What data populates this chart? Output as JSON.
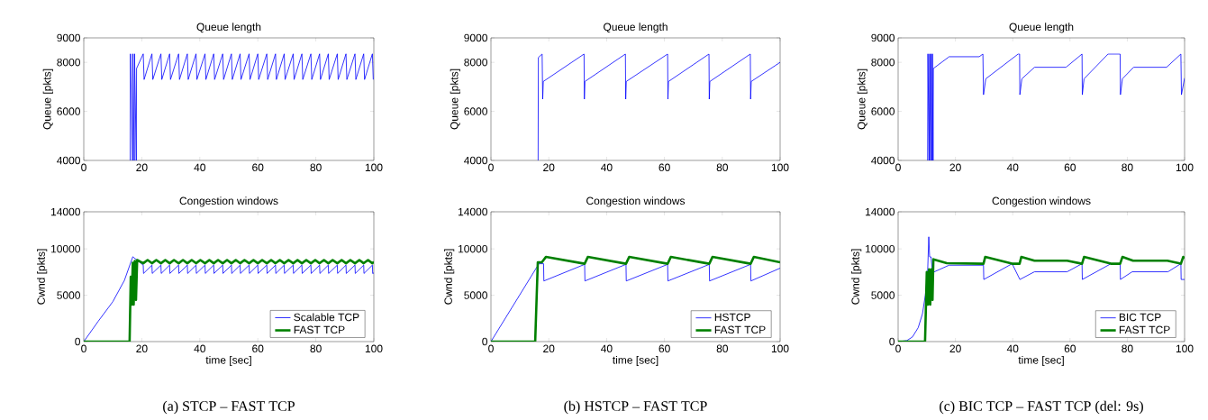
{
  "chart_data": [
    {
      "type": "line",
      "title": "Queue length",
      "ylabel": "Queue [pkts]",
      "xlim": [
        0,
        100
      ],
      "ylim": [
        4000,
        9000
      ],
      "xticks": [
        0,
        20,
        40,
        60,
        80,
        100
      ],
      "yticks": [
        4000,
        6000,
        8000,
        9000
      ],
      "series": [
        {
          "color": "#0000ff",
          "x": [
            16.0,
            16.1,
            16.8,
            16.9,
            17.4,
            17.5,
            18.1,
            18.2,
            20.5,
            20.8,
            23.5,
            23.8,
            26.6,
            26.9,
            29.6,
            29.9,
            32.7,
            33.0,
            35.7,
            36.0,
            38.7,
            39.0,
            41.8,
            42.1,
            44.8,
            45.1,
            47.9,
            48.2,
            50.9,
            51.2,
            53.9,
            54.2,
            57.0,
            57.3,
            60.0,
            60.3,
            63.1,
            63.4,
            66.1,
            66.4,
            69.1,
            69.4,
            72.2,
            72.5,
            75.2,
            75.5,
            78.3,
            78.6,
            81.3,
            81.6,
            84.3,
            84.6,
            87.4,
            87.7,
            90.4,
            90.7,
            93.5,
            93.8,
            96.5,
            96.8,
            99.5,
            99.8
          ],
          "values": [
            4000,
            8350,
            4000,
            8350,
            4000,
            8350,
            4000,
            7750,
            8350,
            7300,
            8350,
            7300,
            8350,
            7300,
            8350,
            7300,
            8350,
            7300,
            8350,
            7300,
            8350,
            7300,
            8350,
            7300,
            8350,
            7300,
            8350,
            7300,
            8350,
            7300,
            8350,
            7300,
            8350,
            7300,
            8350,
            7300,
            8350,
            7300,
            8350,
            7300,
            8350,
            7300,
            8350,
            7300,
            8350,
            7300,
            8350,
            7300,
            8350,
            7300,
            8350,
            7300,
            8350,
            7300,
            8350,
            7300,
            8350,
            7300,
            8350,
            7300,
            8350,
            7300
          ]
        }
      ]
    },
    {
      "type": "line",
      "title": "Queue length",
      "ylabel": "Queue [pkts]",
      "xlim": [
        0,
        100
      ],
      "ylim": [
        4000,
        9000
      ],
      "xticks": [
        0,
        20,
        40,
        60,
        80,
        100
      ],
      "yticks": [
        4000,
        6000,
        8000,
        9000
      ],
      "series": [
        {
          "color": "#0000ff",
          "x": [
            16.3,
            16.4,
            17.7,
            17.9,
            18.1,
            32.2,
            32.3,
            32.5,
            46.5,
            46.6,
            46.8,
            61.1,
            61.2,
            61.4,
            75.4,
            75.5,
            75.7,
            89.7,
            89.8,
            90.0,
            100
          ],
          "values": [
            4000,
            8200,
            8340,
            6500,
            7220,
            8340,
            6500,
            7220,
            8340,
            6500,
            7220,
            8340,
            6500,
            7220,
            8340,
            6500,
            7220,
            8340,
            6500,
            7220,
            8000
          ]
        }
      ]
    },
    {
      "type": "line",
      "title": "Queue length",
      "ylabel": "Queue [pkts]",
      "xlim": [
        0,
        100
      ],
      "ylim": [
        4000,
        9000
      ],
      "xticks": [
        0,
        20,
        40,
        60,
        80,
        100
      ],
      "yticks": [
        4000,
        6000,
        8000,
        9000
      ],
      "series": [
        {
          "color": "#0000ff",
          "x": [
            10.3,
            10.4,
            10.8,
            11.0,
            11.3,
            11.5,
            11.8,
            12.0,
            12.2,
            12.3,
            17.8,
            28.3,
            29.6,
            29.8,
            30.6,
            41.9,
            42.4,
            42.5,
            43.2,
            47.6,
            58.6,
            64.2,
            64.3,
            64.9,
            73.3,
            77.5,
            77.6,
            78.3,
            82.2,
            93.7,
            98.7,
            98.9,
            100
          ],
          "values": [
            4000,
            8350,
            4000,
            8350,
            4000,
            8350,
            4000,
            8350,
            4000,
            7750,
            8230,
            8230,
            8340,
            6680,
            7330,
            8340,
            8340,
            6680,
            7330,
            7800,
            7800,
            8340,
            6680,
            7330,
            8340,
            8340,
            6680,
            7330,
            7800,
            7800,
            8340,
            6680,
            7360
          ]
        }
      ]
    },
    {
      "type": "line",
      "title": "Congestion windows",
      "xlabel": "time [sec]",
      "ylabel": "Cwnd [pkts]",
      "xlim": [
        0,
        100
      ],
      "ylim": [
        0,
        14000
      ],
      "xticks": [
        0,
        20,
        40,
        60,
        80,
        100
      ],
      "yticks": [
        0,
        5000,
        10000,
        14000
      ],
      "legend": "bottom right",
      "annotations": [
        "(a) STCP – FAST TCP"
      ],
      "series": [
        {
          "name": "Scalable TCP",
          "color": "#0000ff",
          "x": [
            0,
            5,
            10,
            14,
            16.9,
            17.2,
            20.5,
            20.6,
            23.5,
            23.6,
            26.6,
            26.7,
            29.6,
            29.7,
            32.7,
            32.8,
            35.7,
            35.8,
            38.7,
            38.8,
            41.8,
            41.9,
            44.8,
            44.9,
            47.9,
            48.0,
            50.9,
            51.0,
            53.9,
            54.0,
            57.0,
            57.1,
            60.0,
            60.1,
            63.1,
            63.2,
            66.1,
            66.2,
            69.1,
            69.2,
            72.2,
            72.3,
            75.2,
            75.3,
            78.3,
            78.4,
            81.3,
            81.4,
            84.3,
            84.4,
            87.4,
            87.5,
            90.4,
            90.5,
            93.5,
            93.6,
            96.5,
            96.6,
            99.5,
            99.6,
            100
          ],
          "values": [
            0,
            2200,
            4300,
            6600,
            9150,
            null,
            8250,
            7350,
            8250,
            7350,
            8250,
            7350,
            8250,
            7350,
            8250,
            7350,
            8250,
            7350,
            8250,
            7350,
            8250,
            7350,
            8250,
            7350,
            8250,
            7350,
            8250,
            7350,
            8250,
            7350,
            8250,
            7350,
            8250,
            7350,
            8250,
            7350,
            8250,
            7350,
            8250,
            7350,
            8250,
            7350,
            8250,
            7350,
            8250,
            7350,
            8250,
            7350,
            8250,
            7350,
            8250,
            7350,
            8250,
            7350,
            8250,
            7350,
            8250,
            7350,
            8250,
            7350,
            7400
          ]
        },
        {
          "name": "FAST TCP",
          "color": "#008000",
          "x": [
            0,
            15.8,
            16.2,
            16.5,
            16.9,
            17.2,
            17.6,
            18.0,
            18.4,
            20.5,
            22.0,
            23.5,
            25.0,
            26.6,
            28.1,
            29.6,
            31.1,
            32.7,
            34.2,
            35.7,
            37.2,
            38.7,
            40.2,
            41.8,
            43.3,
            44.8,
            46.3,
            47.9,
            49.4,
            50.9,
            52.4,
            53.9,
            55.4,
            57.0,
            58.5,
            60.0,
            61.5,
            63.1,
            64.6,
            66.1,
            67.6,
            69.1,
            70.6,
            72.2,
            73.7,
            75.2,
            76.7,
            78.3,
            79.8,
            81.3,
            82.8,
            84.3,
            85.8,
            87.4,
            88.9,
            90.4,
            91.9,
            93.5,
            95.0,
            96.5,
            98.0,
            99.5,
            100
          ],
          "values": [
            0,
            0,
            7000,
            4000,
            8500,
            4000,
            8700,
            4500,
            8800,
            8450,
            8800,
            8450,
            8800,
            8450,
            8800,
            8450,
            8800,
            8450,
            8800,
            8450,
            8800,
            8450,
            8800,
            8450,
            8800,
            8450,
            8800,
            8450,
            8800,
            8450,
            8800,
            8450,
            8800,
            8450,
            8800,
            8450,
            8800,
            8450,
            8800,
            8450,
            8800,
            8450,
            8800,
            8450,
            8800,
            8450,
            8800,
            8450,
            8800,
            8450,
            8800,
            8450,
            8800,
            8450,
            8800,
            8450,
            8800,
            8450,
            8800,
            8450,
            8800,
            8450,
            8600
          ]
        }
      ]
    },
    {
      "type": "line",
      "title": "Congestion windows",
      "xlabel": "time [sec]",
      "ylabel": "Cwnd [pkts]",
      "xlim": [
        0,
        100
      ],
      "ylim": [
        0,
        14000
      ],
      "xticks": [
        0,
        20,
        40,
        60,
        80,
        100
      ],
      "yticks": [
        0,
        5000,
        10000,
        14000
      ],
      "legend": "bottom right",
      "annotations": [
        "(b) HSTCP – FAST TCP"
      ],
      "series": [
        {
          "name": "HSTCP",
          "color": "#0000ff",
          "x": [
            0,
            16.6,
            18.2,
            18.3,
            32.4,
            32.5,
            46.7,
            46.8,
            61.1,
            61.2,
            75.5,
            75.6,
            89.8,
            89.9,
            100
          ],
          "values": [
            0,
            8400,
            8400,
            6540,
            8330,
            6540,
            8330,
            6540,
            8330,
            6540,
            8330,
            6540,
            8330,
            6540,
            7920
          ]
        },
        {
          "name": "FAST TCP",
          "color": "#008000",
          "x": [
            0,
            15.3,
            16.2,
            17.6,
            19.0,
            32.4,
            33.5,
            46.7,
            47.8,
            61.1,
            62.2,
            75.5,
            76.6,
            89.8,
            90.9,
            100
          ],
          "values": [
            0,
            0,
            8560,
            8560,
            9130,
            8400,
            9130,
            8400,
            9130,
            8400,
            9130,
            8400,
            9130,
            8400,
            9130,
            8560
          ]
        }
      ]
    },
    {
      "type": "line",
      "title": "Congestion windows",
      "xlabel": "time [sec]",
      "ylabel": "Cwnd [pkts]",
      "xlim": [
        0,
        100
      ],
      "ylim": [
        0,
        14000
      ],
      "xticks": [
        0,
        20,
        40,
        60,
        80,
        100
      ],
      "yticks": [
        0,
        5000,
        10000,
        14000
      ],
      "legend": "bottom right",
      "annotations": [
        "(c) BIC TCP – FAST TCP (del: 9s)"
      ],
      "series": [
        {
          "name": "BIC TCP",
          "color": "#0000ff",
          "x": [
            0,
            3,
            5,
            7,
            8.5,
            9.5,
            10.3,
            10.7,
            11.0,
            11.5,
            12.0,
            17.8,
            29.8,
            29.9,
            39.8,
            42.4,
            42.5,
            47.6,
            59.0,
            64.2,
            64.3,
            74.3,
            77.5,
            77.6,
            81.7,
            94.2,
            98.7,
            98.8,
            100
          ],
          "values": [
            0,
            100,
            500,
            1500,
            3000,
            5000,
            7500,
            11300,
            9130,
            9130,
            7440,
            8240,
            8240,
            6700,
            8400,
            null,
            6700,
            7530,
            7530,
            8400,
            6700,
            8400,
            8400,
            6700,
            7530,
            7530,
            8400,
            6700,
            6700
          ]
        },
        {
          "name": "FAST TCP",
          "color": "#008000",
          "x": [
            0,
            9.4,
            10.0,
            10.4,
            10.8,
            11.2,
            11.6,
            12.0,
            12.3,
            17.0,
            29.8,
            30.4,
            39.8,
            42.4,
            43.0,
            47.6,
            59.0,
            64.2,
            64.9,
            74.3,
            77.5,
            78.3,
            82.0,
            94.0,
            98.7,
            99.5,
            100
          ],
          "values": [
            0,
            0,
            7500,
            4000,
            7800,
            4000,
            7800,
            4500,
            8880,
            8460,
            8400,
            9130,
            8400,
            8400,
            9130,
            8720,
            8720,
            8400,
            9130,
            8400,
            8400,
            9130,
            8720,
            8720,
            8400,
            9130,
            9000
          ]
        }
      ]
    }
  ]
}
